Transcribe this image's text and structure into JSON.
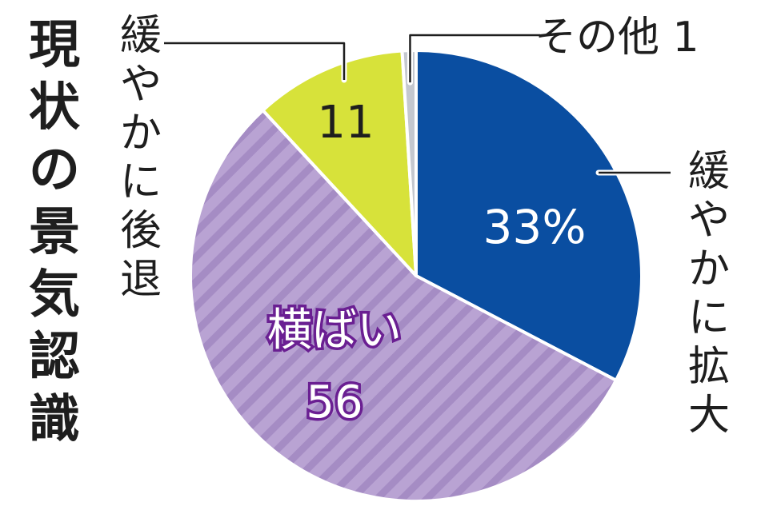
{
  "chart_data": {
    "type": "pie",
    "title": "現状の景気認識",
    "start_angle_deg": 0,
    "direction": "clockwise",
    "slices": [
      {
        "key": "expand",
        "label": "緩やかに拡大",
        "value": 33,
        "value_label": "33%",
        "color": "#0a4ea1"
      },
      {
        "key": "flat",
        "label": "横ばい",
        "value": 56,
        "value_label": "56",
        "color": "#b9a3d3",
        "pattern": "diagonal-stripes"
      },
      {
        "key": "decline",
        "label": "緩やかに後退",
        "value": 11,
        "value_label": "11",
        "color": "#d7e23a"
      },
      {
        "key": "other",
        "label": "その他",
        "value": 1,
        "value_label": "1",
        "color": "#c4c8cf"
      }
    ],
    "colors": {
      "stripe": "#a58cc4",
      "text": "#1e1e1e",
      "purple_outline": "#6a1f92"
    }
  }
}
